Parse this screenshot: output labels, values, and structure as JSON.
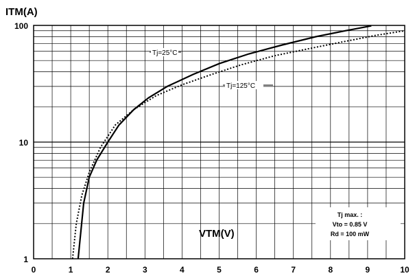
{
  "chart_data": {
    "type": "line",
    "ylabel": "ITM(A)",
    "xlabel": "VTM(V)",
    "xlim": [
      0,
      10
    ],
    "ylim": [
      1,
      100
    ],
    "y_scale": "log",
    "grid": true,
    "x_ticks": [
      "0",
      "1",
      "2",
      "3",
      "4",
      "5",
      "6",
      "7",
      "8",
      "9",
      "10"
    ],
    "y_ticks": [
      "1",
      "10",
      "100"
    ],
    "series": [
      {
        "name": "Tj=25°C",
        "style": "solid",
        "color": "#000000",
        "x": [
          1.2,
          1.35,
          1.5,
          1.7,
          2.0,
          2.3,
          2.7,
          3.1,
          3.6,
          4.3,
          5.0,
          5.8,
          6.7,
          7.6,
          8.4,
          9.1
        ],
        "y": [
          1,
          3,
          5,
          7,
          10,
          14,
          19,
          24,
          30,
          38,
          47,
          57,
          68,
          80,
          90,
          99
        ]
      },
      {
        "name": "Tj=125°C",
        "style": "dotted",
        "color": "#000000",
        "x": [
          1.05,
          1.15,
          1.3,
          1.5,
          1.8,
          2.2,
          2.7,
          3.3,
          4.0,
          4.8,
          5.6,
          6.5,
          7.4,
          8.3,
          9.2,
          10.0
        ],
        "y": [
          1,
          2,
          3.5,
          5.5,
          9,
          14,
          19,
          25,
          31,
          38,
          46,
          55,
          63,
          72,
          82,
          90
        ]
      }
    ],
    "annotation": {
      "lines": [
        "Tj max. :",
        "Vto = 0.85 V",
        "Rd = 100 mW"
      ]
    }
  }
}
